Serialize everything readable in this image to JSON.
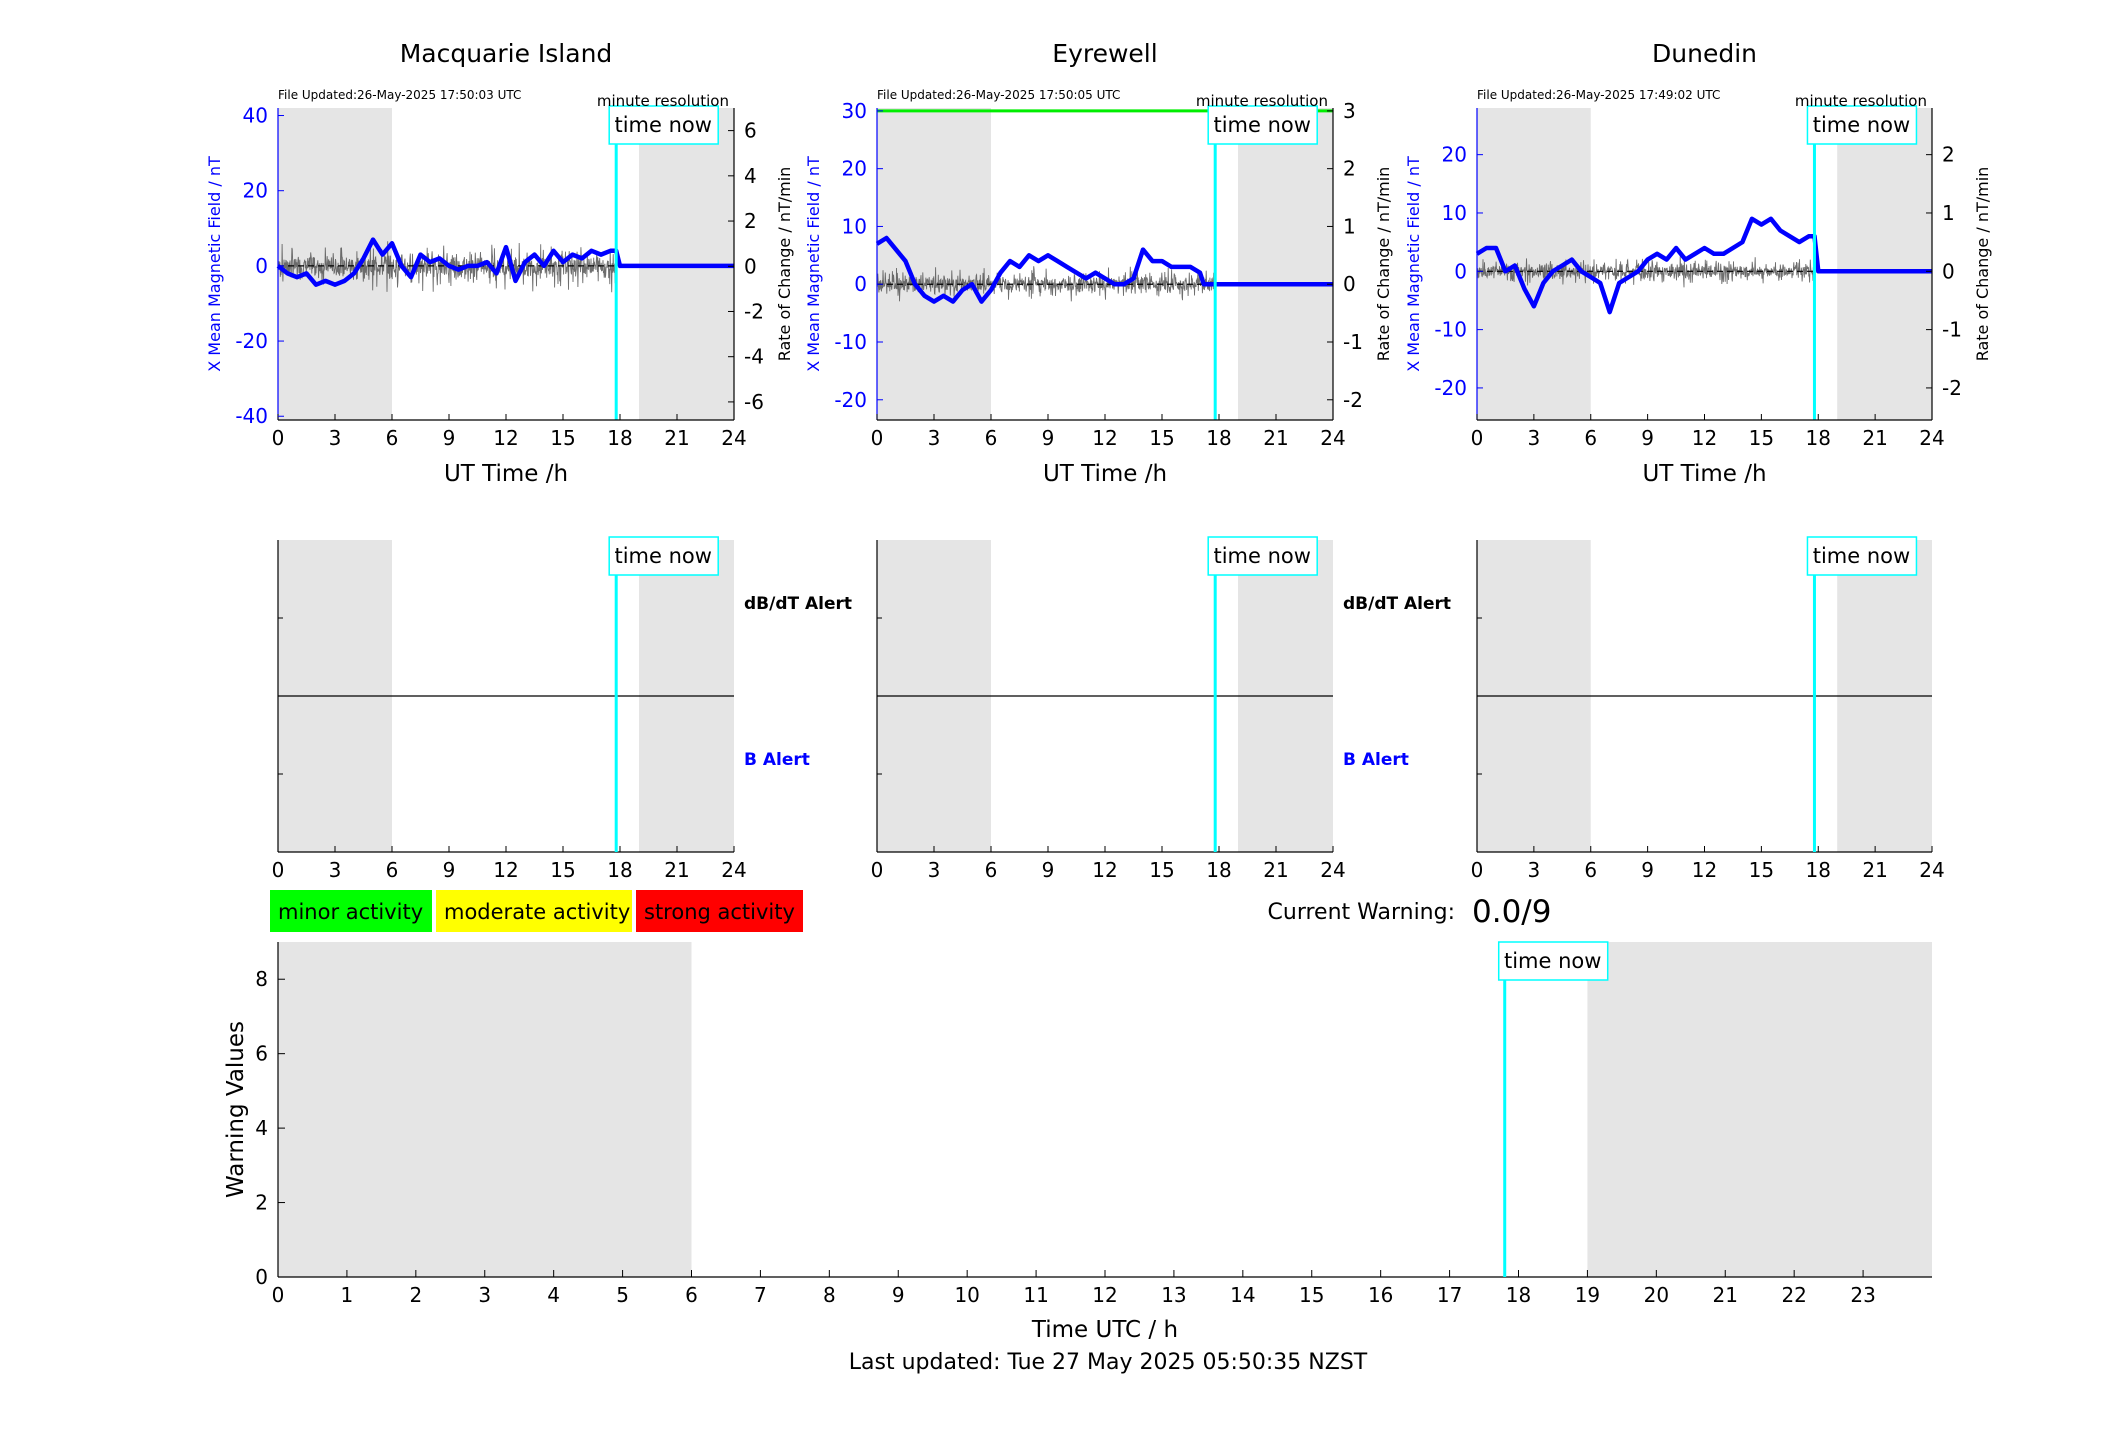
{
  "stations": [
    {
      "name": "Macquarie Island",
      "file_updated": "File Updated:26-May-2025 17:50:03 UTC",
      "resolution": "minute resolution",
      "time_now_label": "time now",
      "left_ylabel": "X Mean Magnetic Field / nT",
      "right_ylabel": "Rate of Change / nT/min",
      "xlabel": "UT Time /h",
      "left_ylim": [
        -41,
        42
      ],
      "left_yticks": [
        -40,
        -20,
        0,
        20,
        40
      ],
      "right_ylim": [
        -6.8,
        7
      ],
      "right_yticks": [
        -6,
        -4,
        -2,
        0,
        2,
        4,
        6
      ],
      "xticks": [
        0,
        3,
        6,
        9,
        12,
        15,
        18,
        21,
        24
      ],
      "time_now": 17.8,
      "night_shading": [
        [
          0,
          6
        ],
        [
          19,
          24
        ]
      ],
      "colors": {
        "field": "#0000ff",
        "rate": "#555555",
        "now": "#00ffff",
        "shade": "#e5e5e5"
      },
      "chart_data": {
        "type": "line",
        "x": [
          0,
          0.5,
          1,
          1.5,
          2,
          2.5,
          3,
          3.5,
          4,
          4.5,
          5,
          5.5,
          6,
          6.5,
          7,
          7.5,
          8,
          8.5,
          9,
          9.5,
          10,
          10.5,
          11,
          11.5,
          12,
          12.5,
          13,
          13.5,
          14,
          14.5,
          15,
          15.5,
          16,
          16.5,
          17,
          17.5,
          17.8,
          18,
          19,
          20,
          21,
          22,
          23,
          24
        ],
        "series": [
          {
            "values": [
              0,
              -2,
              -3,
              -2,
              -5,
              -4,
              -5,
              -4,
              -2,
              2,
              7,
              3,
              6,
              0,
              -3,
              3,
              1,
              2,
              0,
              -1,
              0,
              0,
              1,
              -2,
              5,
              -4,
              1,
              3,
              0,
              4,
              1,
              3,
              2,
              4,
              3,
              4,
              4,
              0,
              0,
              0,
              0,
              0,
              0,
              0
            ]
          }
        ],
        "rate_amplitude": 1.2
      }
    },
    {
      "name": "Eyrewell",
      "file_updated": "File Updated:26-May-2025 17:50:05 UTC",
      "resolution": "minute resolution",
      "time_now_label": "time now",
      "left_ylabel": "X Mean Magnetic Field / nT",
      "right_ylabel": "Rate of Change / nT/min",
      "xlabel": "UT Time /h",
      "left_ylim": [
        -23.5,
        30.5
      ],
      "left_yticks": [
        -20,
        -10,
        0,
        10,
        20,
        30
      ],
      "right_ylim": [
        -2.35,
        3.05
      ],
      "right_yticks": [
        -2,
        -1,
        0,
        1,
        2,
        3
      ],
      "xticks": [
        0,
        3,
        6,
        9,
        12,
        15,
        18,
        21,
        24
      ],
      "time_now": 17.8,
      "night_shading": [
        [
          0,
          6
        ],
        [
          19,
          24
        ]
      ],
      "colors": {
        "field": "#0000ff",
        "rate": "#555555",
        "now": "#00ffff",
        "shade": "#e5e5e5",
        "limit": "#00ee00"
      },
      "chart_data": {
        "type": "line",
        "x": [
          0,
          0.5,
          1,
          1.5,
          2,
          2.5,
          3,
          3.5,
          4,
          4.5,
          5,
          5.5,
          6,
          6.5,
          7,
          7.5,
          8,
          8.5,
          9,
          9.5,
          10,
          10.5,
          11,
          11.5,
          12,
          12.5,
          13,
          13.5,
          14,
          14.5,
          15,
          15.5,
          16,
          16.5,
          17,
          17.2,
          17.8,
          18,
          19,
          20,
          21,
          22,
          23,
          24
        ],
        "series": [
          {
            "values": [
              7,
              8,
              6,
              4,
              0,
              -2,
              -3,
              -2,
              -3,
              -1,
              0,
              -3,
              -1,
              2,
              4,
              3,
              5,
              4,
              5,
              4,
              3,
              2,
              1,
              2,
              1,
              0,
              0,
              1,
              6,
              4,
              4,
              3,
              3,
              3,
              2,
              0,
              0,
              0,
              0,
              0,
              0,
              0,
              0,
              0
            ]
          }
        ],
        "rate_amplitude": 0.35,
        "alert_level": 30
      }
    },
    {
      "name": "Dunedin",
      "file_updated": "File Updated:26-May-2025 17:49:02 UTC",
      "resolution": "minute resolution",
      "time_now_label": "time now",
      "left_ylabel": "X Mean Magnetic Field / nT",
      "right_ylabel": "Rate of Change / nT/min",
      "xlabel": "UT Time /h",
      "left_ylim": [
        -25.5,
        28
      ],
      "left_yticks": [
        -20,
        -10,
        0,
        10,
        20
      ],
      "right_ylim": [
        -2.55,
        2.8
      ],
      "right_yticks": [
        -2,
        -1,
        0,
        1,
        2
      ],
      "xticks": [
        0,
        3,
        6,
        9,
        12,
        15,
        18,
        21,
        24
      ],
      "time_now": 17.8,
      "night_shading": [
        [
          0,
          6
        ],
        [
          19,
          24
        ]
      ],
      "colors": {
        "field": "#0000ff",
        "rate": "#555555",
        "now": "#00ffff",
        "shade": "#e5e5e5"
      },
      "chart_data": {
        "type": "line",
        "x": [
          0,
          0.5,
          1,
          1.5,
          2,
          2.5,
          3,
          3.5,
          4,
          4.5,
          5,
          5.5,
          6,
          6.5,
          7,
          7.5,
          8,
          8.5,
          9,
          9.5,
          10,
          10.5,
          11,
          11.5,
          12,
          12.5,
          13,
          13.5,
          14,
          14.5,
          15,
          15.5,
          16,
          16.5,
          17,
          17.5,
          17.8,
          18,
          19,
          20,
          21,
          22,
          23,
          24
        ],
        "series": [
          {
            "values": [
              3,
              4,
              4,
              0,
              1,
              -3,
              -6,
              -2,
              0,
              1,
              2,
              0,
              -1,
              -2,
              -7,
              -2,
              -1,
              0,
              2,
              3,
              2,
              4,
              2,
              3,
              4,
              3,
              3,
              4,
              5,
              9,
              8,
              9,
              7,
              6,
              5,
              6,
              6,
              0,
              0,
              0,
              0,
              0,
              0,
              0
            ]
          }
        ],
        "rate_amplitude": 0.3
      }
    }
  ],
  "alerts": {
    "time_now_label": "time now",
    "dbdt_label": "dB/dT Alert",
    "b_label": "B Alert",
    "xticks": [
      0,
      3,
      6,
      9,
      12,
      15,
      18,
      21,
      24
    ],
    "time_now": 17.8,
    "night_shading": [
      [
        0,
        6
      ],
      [
        19,
        24
      ]
    ],
    "colors": {
      "dbdt": "#000000",
      "b": "#0000ff"
    }
  },
  "legend": {
    "items": [
      {
        "label": "minor activity",
        "color": "#00ff00"
      },
      {
        "label": "moderate activity",
        "color": "#ffff00"
      },
      {
        "label": "strong activity",
        "color": "#ff0000"
      }
    ]
  },
  "current_warning": {
    "label": "Current Warning:",
    "value": "0.0/9"
  },
  "warning_chart": {
    "ylabel": "Warning Values",
    "xlabel": "Time UTC / h",
    "ylim": [
      0,
      9
    ],
    "yticks": [
      0,
      2,
      4,
      6,
      8
    ],
    "xticks": [
      0,
      1,
      2,
      3,
      4,
      5,
      6,
      7,
      8,
      9,
      10,
      11,
      12,
      13,
      14,
      15,
      16,
      17,
      18,
      19,
      20,
      21,
      22,
      23
    ],
    "xlim": [
      0,
      24
    ],
    "time_now": 17.8,
    "time_now_label": "time now",
    "night_shading": [
      [
        0,
        6
      ],
      [
        19,
        24
      ]
    ],
    "chart_data": {
      "type": "bar",
      "x": [],
      "values": []
    }
  },
  "footer": {
    "last_updated": "Last updated: Tue 27 May 2025 05:50:35 NZST"
  }
}
